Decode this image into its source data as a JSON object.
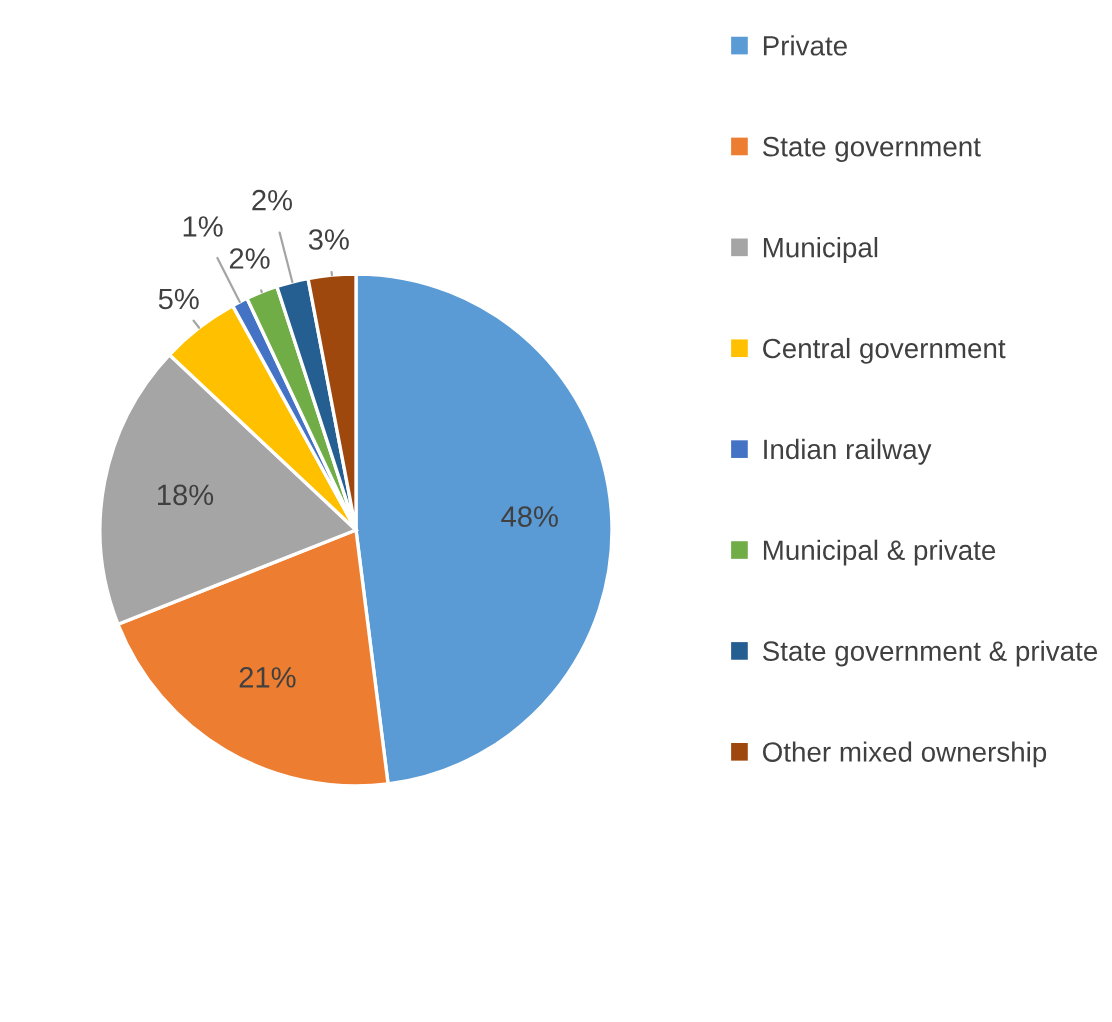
{
  "chart_data": {
    "type": "pie",
    "categories": [
      "Private",
      "State government",
      "Municipal",
      "Central government",
      "Indian railway",
      "Municipal & private",
      "State government & private",
      "Other mixed ownership"
    ],
    "values": [
      48,
      21,
      18,
      5,
      1,
      2,
      2,
      3
    ],
    "value_labels": [
      "48%",
      "21%",
      "18%",
      "5%",
      "1%",
      "2%",
      "2%",
      "3%"
    ],
    "colors": [
      "#5b9bd5",
      "#ed7d31",
      "#a5a5a5",
      "#ffc000",
      "#4472c4",
      "#70ad47",
      "#255e91",
      "#9e480e"
    ],
    "legend": "right"
  }
}
